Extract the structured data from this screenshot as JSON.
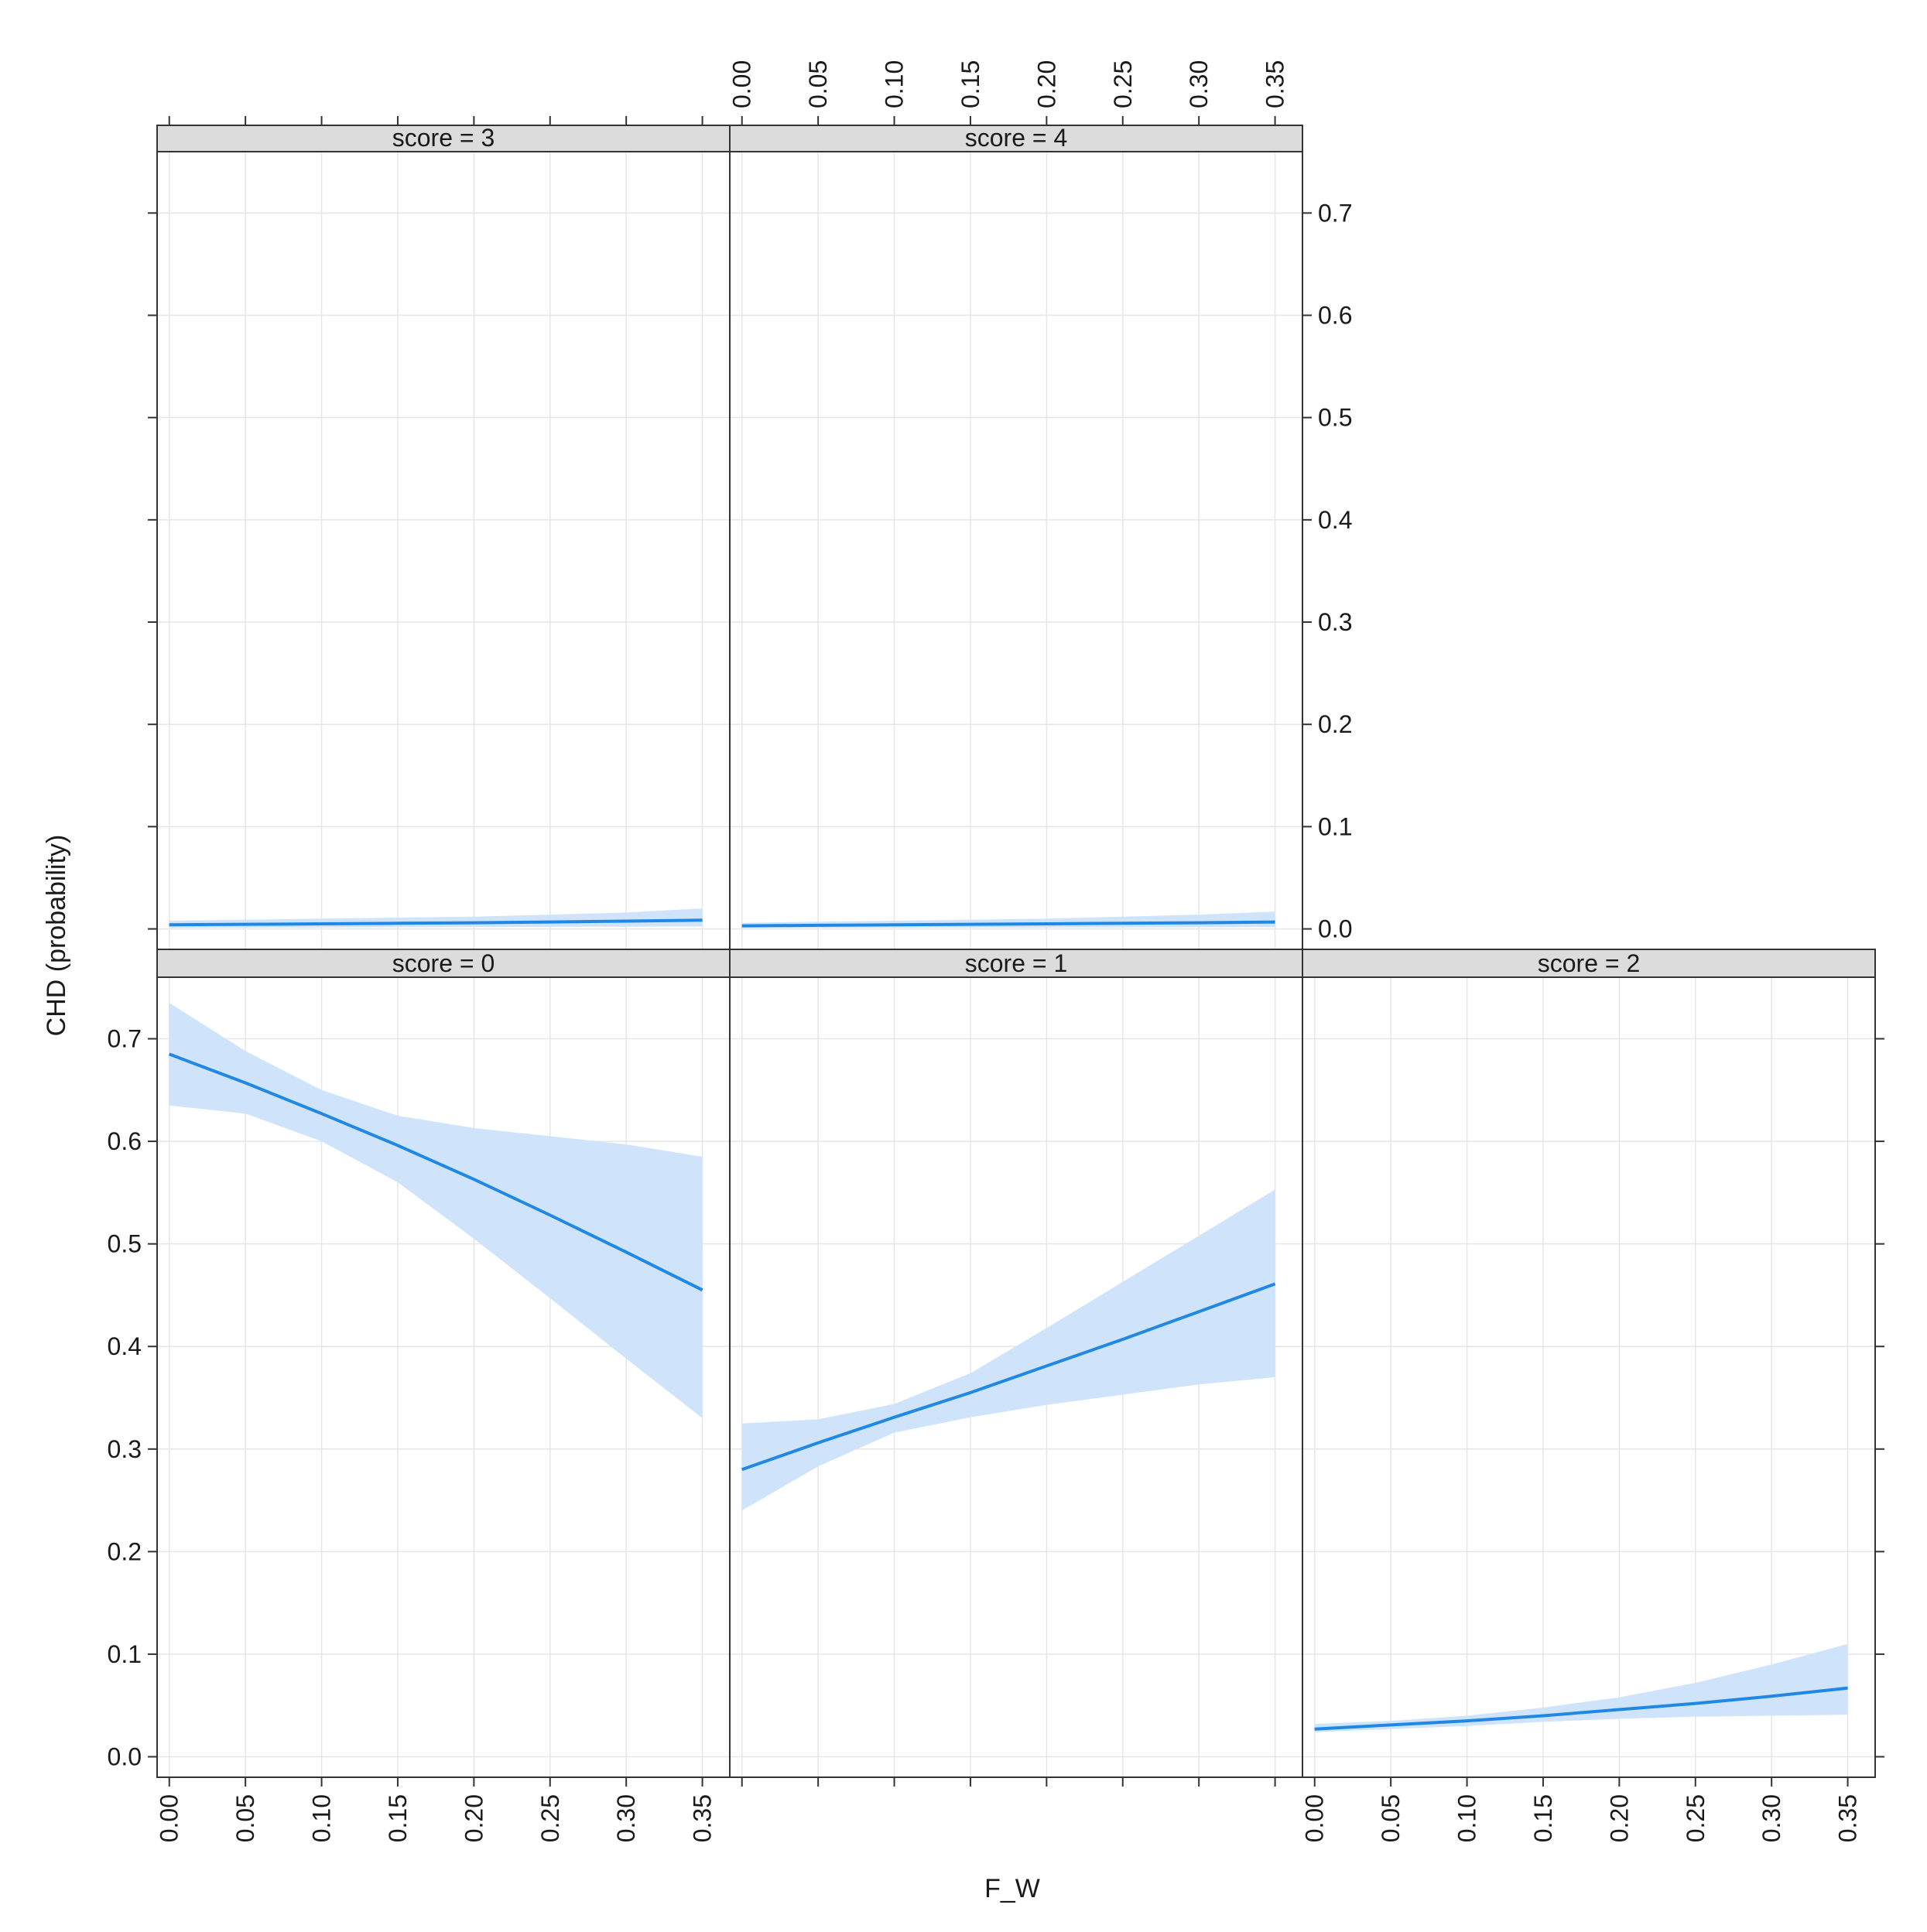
{
  "chart_data": {
    "type": "line",
    "xlabel": "F_W",
    "ylabel": "CHD (probability)",
    "xlim": [
      -0.008,
      0.368
    ],
    "ylim": [
      -0.02,
      0.76
    ],
    "x_ticks": [
      "0.00",
      "0.05",
      "0.10",
      "0.15",
      "0.20",
      "0.25",
      "0.30",
      "0.35"
    ],
    "y_ticks": [
      "0.0",
      "0.1",
      "0.2",
      "0.3",
      "0.4",
      "0.5",
      "0.6",
      "0.7"
    ],
    "grid": true,
    "line_color": "#1f88e5",
    "band_color": "#cfe4fb",
    "panels": [
      {
        "strip": "score = 3",
        "x": [
          0,
          0.05,
          0.1,
          0.15,
          0.2,
          0.25,
          0.3,
          0.35
        ],
        "fit": [
          0.004,
          0.0045,
          0.005,
          0.0055,
          0.006,
          0.0068,
          0.0076,
          0.0085
        ],
        "lower": [
          0.001,
          0.0012,
          0.0014,
          0.0016,
          0.0018,
          0.002,
          0.0022,
          0.0025
        ],
        "upper": [
          0.008,
          0.009,
          0.01,
          0.011,
          0.012,
          0.014,
          0.016,
          0.02
        ]
      },
      {
        "strip": "score = 4",
        "x": [
          0,
          0.05,
          0.1,
          0.15,
          0.2,
          0.25,
          0.3,
          0.35
        ],
        "fit": [
          0.003,
          0.0035,
          0.004,
          0.0045,
          0.005,
          0.0055,
          0.006,
          0.0068
        ],
        "lower": [
          0.001,
          0.0011,
          0.0012,
          0.0013,
          0.0014,
          0.0015,
          0.0016,
          0.0018
        ],
        "upper": [
          0.006,
          0.007,
          0.008,
          0.009,
          0.01,
          0.012,
          0.014,
          0.017
        ]
      },
      {
        "strip": "score = 0",
        "x": [
          0,
          0.05,
          0.1,
          0.15,
          0.2,
          0.25,
          0.3,
          0.35
        ],
        "fit": [
          0.685,
          0.657,
          0.627,
          0.596,
          0.563,
          0.528,
          0.492,
          0.455
        ],
        "lower": [
          0.635,
          0.627,
          0.6,
          0.56,
          0.505,
          0.447,
          0.388,
          0.33
        ],
        "upper": [
          0.735,
          0.688,
          0.65,
          0.625,
          0.613,
          0.605,
          0.597,
          0.585
        ]
      },
      {
        "strip": "score = 1",
        "x": [
          0,
          0.05,
          0.1,
          0.15,
          0.2,
          0.25,
          0.3,
          0.35
        ],
        "fit": [
          0.28,
          0.306,
          0.331,
          0.355,
          0.381,
          0.407,
          0.434,
          0.461
        ],
        "lower": [
          0.24,
          0.283,
          0.316,
          0.331,
          0.343,
          0.353,
          0.363,
          0.37
        ],
        "upper": [
          0.325,
          0.329,
          0.344,
          0.374,
          0.418,
          0.463,
          0.508,
          0.553
        ]
      },
      {
        "strip": "score = 2",
        "x": [
          0,
          0.05,
          0.1,
          0.15,
          0.2,
          0.25,
          0.3,
          0.35
        ],
        "fit": [
          0.027,
          0.031,
          0.035,
          0.04,
          0.046,
          0.052,
          0.059,
          0.067
        ],
        "lower": [
          0.024,
          0.027,
          0.03,
          0.034,
          0.037,
          0.039,
          0.04,
          0.041
        ],
        "upper": [
          0.032,
          0.035,
          0.04,
          0.048,
          0.058,
          0.072,
          0.09,
          0.11
        ]
      }
    ]
  }
}
